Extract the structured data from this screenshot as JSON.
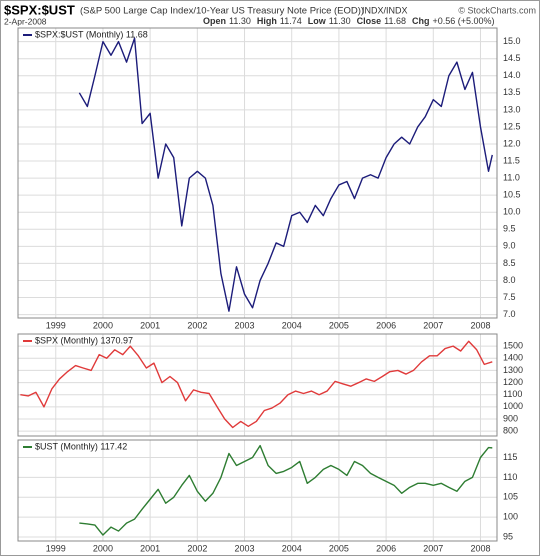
{
  "header": {
    "title": "$SPX:$UST",
    "subtitle": "(S&P 500 Large Cap Index/10-Year US Treasury Note Price (EOD))",
    "exchange": "INDX/INDX",
    "source": "© StockCharts.com",
    "date": "2-Apr-2008",
    "quote": [
      {
        "label": "Open",
        "value": "11.30"
      },
      {
        "label": "High",
        "value": "11.74"
      },
      {
        "label": "Low",
        "value": "11.30"
      },
      {
        "label": "Close",
        "value": "11.68"
      },
      {
        "label": "Chg",
        "value": "+0.56 (+5.00%)"
      }
    ]
  },
  "chart_data": [
    {
      "type": "line",
      "x": [
        1999.5,
        1999.67,
        1999.83,
        2000,
        2000.17,
        2000.33,
        2000.5,
        2000.67,
        2000.83,
        2001,
        2001.17,
        2001.33,
        2001.5,
        2001.67,
        2001.83,
        2002,
        2002.17,
        2002.33,
        2002.5,
        2002.67,
        2002.83,
        2003,
        2003.17,
        2003.33,
        2003.5,
        2003.67,
        2003.83,
        2004,
        2004.17,
        2004.33,
        2004.5,
        2004.67,
        2004.83,
        2005,
        2005.17,
        2005.33,
        2005.5,
        2005.67,
        2005.83,
        2006,
        2006.17,
        2006.33,
        2006.5,
        2006.67,
        2006.83,
        2007,
        2007.17,
        2007.33,
        2007.5,
        2007.67,
        2007.83,
        2008,
        2008.17,
        2008.25
      ],
      "series": [
        {
          "name": "$SPX:$UST (Monthly) 11.68",
          "color": "#1c1c7a",
          "values": [
            13.5,
            13.1,
            14.0,
            15.0,
            14.6,
            15.0,
            14.4,
            15.1,
            12.6,
            12.9,
            11.0,
            12.0,
            11.6,
            9.6,
            11.0,
            11.2,
            11.0,
            10.2,
            8.2,
            7.1,
            8.4,
            7.6,
            7.2,
            8.0,
            8.5,
            9.1,
            9.0,
            9.9,
            10.0,
            9.7,
            10.2,
            9.9,
            10.4,
            10.8,
            10.9,
            10.4,
            11.0,
            11.1,
            11.0,
            11.6,
            12.0,
            12.2,
            12.0,
            12.5,
            12.8,
            13.3,
            13.1,
            14.0,
            14.4,
            13.6,
            14.1,
            12.5,
            11.2,
            11.68
          ]
        }
      ],
      "xlim": [
        1998.2,
        2008.35
      ],
      "xticks": [
        1999,
        2000,
        2001,
        2002,
        2003,
        2004,
        2005,
        2006,
        2007,
        2008
      ],
      "ylim": [
        6.9,
        15.4
      ],
      "yticks": [
        {
          "value": 7,
          "label": "7.0"
        },
        7.5,
        {
          "value": 8,
          "label": "8.0"
        },
        8.5,
        {
          "value": 9,
          "label": "9.0"
        },
        9.5,
        {
          "value": 10,
          "label": "10.0"
        },
        10.5,
        {
          "value": 11,
          "label": "11.0"
        },
        11.5,
        {
          "value": 12,
          "label": "12.0"
        },
        12.5,
        {
          "value": 13,
          "label": "13.0"
        },
        13.5,
        {
          "value": 14,
          "label": "14.0"
        },
        14.5,
        {
          "value": 15,
          "label": "15.0"
        }
      ],
      "grid": true
    },
    {
      "type": "line",
      "x": [
        1998.25,
        1998.42,
        1998.58,
        1998.75,
        1998.92,
        1999.08,
        1999.25,
        1999.42,
        1999.58,
        1999.75,
        1999.92,
        2000.08,
        2000.25,
        2000.42,
        2000.58,
        2000.75,
        2000.92,
        2001.08,
        2001.25,
        2001.42,
        2001.58,
        2001.75,
        2001.92,
        2002.08,
        2002.25,
        2002.42,
        2002.58,
        2002.75,
        2002.92,
        2003.08,
        2003.25,
        2003.42,
        2003.58,
        2003.75,
        2003.92,
        2004.08,
        2004.25,
        2004.42,
        2004.58,
        2004.75,
        2004.92,
        2005.08,
        2005.25,
        2005.42,
        2005.58,
        2005.75,
        2005.92,
        2006.08,
        2006.25,
        2006.42,
        2006.58,
        2006.75,
        2006.92,
        2007.08,
        2007.25,
        2007.42,
        2007.58,
        2007.75,
        2007.92,
        2008.08,
        2008.25
      ],
      "series": [
        {
          "name": "$SPX (Monthly) 1370.97",
          "color": "#e03a3a",
          "values": [
            1100,
            1090,
            1120,
            1000,
            1150,
            1230,
            1290,
            1340,
            1320,
            1300,
            1430,
            1400,
            1470,
            1430,
            1500,
            1420,
            1320,
            1360,
            1200,
            1250,
            1200,
            1050,
            1140,
            1120,
            1110,
            1000,
            900,
            830,
            880,
            840,
            880,
            970,
            990,
            1030,
            1100,
            1130,
            1110,
            1130,
            1100,
            1130,
            1210,
            1190,
            1170,
            1200,
            1230,
            1210,
            1250,
            1290,
            1300,
            1270,
            1300,
            1370,
            1420,
            1420,
            1480,
            1500,
            1460,
            1540,
            1470,
            1350,
            1370.97
          ]
        }
      ],
      "xlim": [
        1998.2,
        2008.35
      ],
      "xticks": [
        1999,
        2000,
        2001,
        2002,
        2003,
        2004,
        2005,
        2006,
        2007,
        2008
      ],
      "ylim": [
        760,
        1600
      ],
      "yticks": [
        800,
        900,
        1000,
        1100,
        1200,
        1300,
        1400,
        1500
      ],
      "grid": true
    },
    {
      "type": "line",
      "x": [
        1999.5,
        1999.67,
        1999.83,
        2000,
        2000.17,
        2000.33,
        2000.5,
        2000.67,
        2000.83,
        2001,
        2001.17,
        2001.33,
        2001.5,
        2001.67,
        2001.83,
        2002,
        2002.17,
        2002.33,
        2002.5,
        2002.67,
        2002.83,
        2003,
        2003.17,
        2003.33,
        2003.5,
        2003.67,
        2003.83,
        2004,
        2004.17,
        2004.33,
        2004.5,
        2004.67,
        2004.83,
        2005,
        2005.17,
        2005.33,
        2005.5,
        2005.67,
        2005.83,
        2006,
        2006.17,
        2006.33,
        2006.5,
        2006.67,
        2006.83,
        2007,
        2007.17,
        2007.33,
        2007.5,
        2007.67,
        2007.83,
        2008,
        2008.17,
        2008.25
      ],
      "series": [
        {
          "name": "$UST (Monthly) 117.42",
          "color": "#2e7d32",
          "values": [
            98.5,
            98.3,
            98.0,
            95.5,
            97.5,
            96.5,
            98.5,
            99.5,
            102,
            104.5,
            107,
            103.5,
            105,
            108,
            110.5,
            106.5,
            104,
            106,
            110,
            116,
            113,
            114,
            115,
            118,
            113,
            111,
            111.5,
            112.5,
            114,
            108.5,
            110,
            112,
            113,
            112,
            110.5,
            114,
            113,
            111,
            110,
            109,
            108,
            106,
            107.5,
            108.5,
            108.5,
            108,
            108.5,
            107.5,
            106.5,
            109,
            110,
            115,
            117.5,
            117.42
          ]
        }
      ],
      "xlim": [
        1998.2,
        2008.35
      ],
      "xticks": [
        1999,
        2000,
        2001,
        2002,
        2003,
        2004,
        2005,
        2006,
        2007,
        2008
      ],
      "ylim": [
        94,
        119.4
      ],
      "yticks": [
        95,
        100,
        105,
        110,
        115
      ],
      "grid": true
    }
  ]
}
